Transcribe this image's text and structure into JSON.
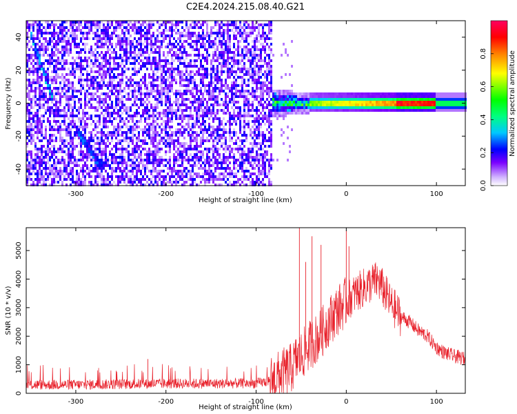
{
  "figure": {
    "title": "C2E4.2024.215.08.40.G21"
  },
  "chart_data": [
    {
      "type": "heatmap",
      "xlabel": "Height of straight line (km)",
      "ylabel": "Frequency (Hz)",
      "xlim": [
        -355,
        132
      ],
      "ylim": [
        -50,
        50
      ],
      "x_ticks": [
        -300,
        -200,
        -100,
        0,
        100
      ],
      "y_ticks": [
        -40,
        -20,
        0,
        20,
        40
      ],
      "colorbar": {
        "label": "Normalized spectral amplitude",
        "range": [
          0,
          1
        ],
        "ticks": [
          0.0,
          0.2,
          0.4,
          0.6,
          0.8
        ],
        "colormap": [
          "#ffffff",
          "#d2b6ff",
          "#7a00ff",
          "#0000ff",
          "#00c8ff",
          "#00ff80",
          "#00ff00",
          "#ffff00",
          "#ff8000",
          "#ff0000",
          "#ff0060"
        ]
      },
      "features": [
        {
          "name": "noise_region",
          "x_range": [
            -355,
            -83
          ],
          "freq_range": [
            -50,
            50
          ],
          "typical_amplitude": 0.12
        },
        {
          "name": "diagonal_streak_upper",
          "x_range": [
            -350,
            -325
          ],
          "freq_range": [
            42,
            2
          ],
          "amplitude": 0.3
        },
        {
          "name": "diagonal_streak_lower",
          "x_range": [
            -300,
            -270
          ],
          "freq_range": [
            -15,
            -40
          ],
          "amplitude": 0.25
        },
        {
          "name": "carrier_band",
          "x_range": [
            -83,
            132
          ],
          "center_freq": 0,
          "half_width": 3,
          "peak_amplitude": 1.0,
          "peak_x_range": [
            55,
            100
          ]
        }
      ]
    },
    {
      "type": "line",
      "xlabel": "Height of straight line (km)",
      "ylabel": "SNR (10 * v/v)",
      "xlim": [
        -355,
        132
      ],
      "ylim": [
        0,
        5800
      ],
      "x_ticks": [
        -300,
        -200,
        -100,
        0,
        100
      ],
      "y_ticks": [
        0,
        1000,
        2000,
        3000,
        4000,
        5000
      ],
      "series": [
        {
          "color": "#e8202a",
          "x": [
            -355,
            -300,
            -250,
            -200,
            -150,
            -100,
            -90,
            -80,
            -70,
            -60,
            -55,
            -50,
            -45,
            -40,
            -30,
            -20,
            -10,
            0,
            10,
            20,
            30,
            35,
            40,
            50,
            60,
            70,
            80,
            90,
            100,
            110,
            120,
            132
          ],
          "values": [
            300,
            300,
            320,
            340,
            340,
            350,
            400,
            500,
            700,
            900,
            1200,
            1300,
            1500,
            1700,
            2000,
            2500,
            2900,
            3200,
            3500,
            3700,
            3900,
            3950,
            3700,
            3100,
            2700,
            2500,
            2200,
            2000,
            1600,
            1400,
            1300,
            1200
          ],
          "spikes": [
            {
              "x": -220,
              "y": 1200
            },
            {
              "x": -52,
              "y": 5850
            },
            {
              "x": -45,
              "y": 4600
            },
            {
              "x": -38,
              "y": 5500
            },
            {
              "x": -28,
              "y": 5200
            },
            {
              "x": 0,
              "y": 5700
            },
            {
              "x": 3,
              "y": 5150
            }
          ]
        }
      ]
    }
  ]
}
